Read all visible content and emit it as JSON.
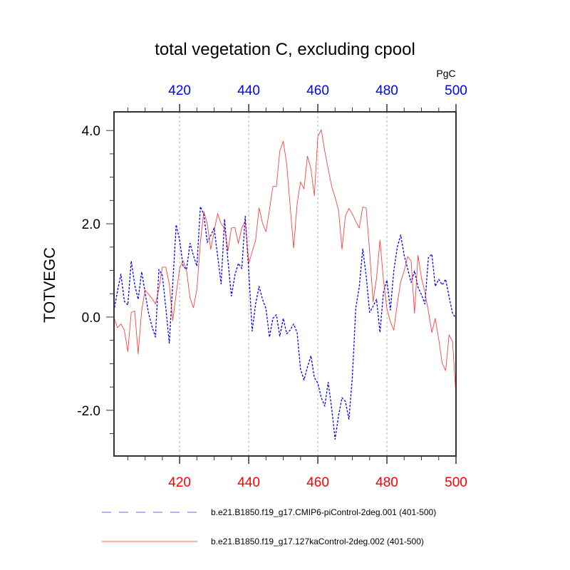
{
  "chart_data": {
    "type": "line",
    "title": "total vegetation C, excluding cpool",
    "units_label": "PgC",
    "xlabel": "",
    "ylabel": "TOTVEGC",
    "xlim": [
      401,
      500
    ],
    "ylim": [
      -2.98,
      4.4
    ],
    "x_ticks": [
      420,
      440,
      460,
      480,
      500
    ],
    "x_tick_labels": [
      "420",
      "440",
      "460",
      "480",
      "500"
    ],
    "x_minor_step": 5,
    "y_ticks": [
      -2.0,
      0.0,
      2.0,
      4.0
    ],
    "y_tick_labels": [
      "-2.0",
      "0.0",
      "2.0",
      "4.0"
    ],
    "y_minor_step": 0.5,
    "grid": "vertical-dotted-at-major-x",
    "legend_position": "bottom",
    "top_axis_color": "#0000ff",
    "bottom_axis_color": "#ff0000",
    "x": [
      401,
      402,
      403,
      404,
      405,
      406,
      407,
      408,
      409,
      410,
      411,
      412,
      413,
      414,
      415,
      416,
      417,
      418,
      419,
      420,
      421,
      422,
      423,
      424,
      425,
      426,
      427,
      428,
      429,
      430,
      431,
      432,
      433,
      434,
      435,
      436,
      437,
      438,
      439,
      440,
      441,
      442,
      443,
      444,
      445,
      446,
      447,
      448,
      449,
      450,
      451,
      452,
      453,
      454,
      455,
      456,
      457,
      458,
      459,
      460,
      461,
      462,
      463,
      464,
      465,
      466,
      467,
      468,
      469,
      470,
      471,
      472,
      473,
      474,
      475,
      476,
      477,
      478,
      479,
      480,
      481,
      482,
      483,
      484,
      485,
      486,
      487,
      488,
      489,
      490,
      491,
      492,
      493,
      494,
      495,
      496,
      497,
      498,
      499,
      500
    ],
    "series": [
      {
        "name": "b.e21.B1850.f19_g17.CMIP6-piControl-2deg.001 (401-500)",
        "color": "#0000ff",
        "style": "dashed",
        "values": [
          0.13,
          0.55,
          0.92,
          0.34,
          0.26,
          1.2,
          0.69,
          0.38,
          0.97,
          0.53,
          0.08,
          -0.2,
          -0.43,
          1.02,
          0.89,
          0.2,
          -0.56,
          0.7,
          1.98,
          1.65,
          1.09,
          1.02,
          1.58,
          1.32,
          1.09,
          2.37,
          2.2,
          1.6,
          1.75,
          1.91,
          1.3,
          0.71,
          2.1,
          1.2,
          0.45,
          0.9,
          1.15,
          1.04,
          2.16,
          0.99,
          -0.3,
          0.28,
          0.66,
          0.38,
          0.18,
          -0.43,
          -0.03,
          0.05,
          -0.41,
          -0.03,
          -0.36,
          -0.28,
          -0.15,
          -0.33,
          -1.12,
          -1.35,
          -1.07,
          -0.83,
          -1.3,
          -1.42,
          -1.73,
          -1.91,
          -1.4,
          -1.96,
          -2.62,
          -2.11,
          -1.73,
          -1.81,
          -2.19,
          -1.3,
          0.2,
          0.64,
          1.46,
          0.89,
          0.1,
          0.23,
          0.38,
          -0.33,
          0.53,
          0.79,
          0.15,
          0.99,
          1.5,
          1.76,
          1.32,
          1.04,
          0.74,
          0.99,
          0.64,
          0.48,
          0.28,
          1.27,
          1.35,
          0.66,
          0.81,
          0.69,
          0.81,
          0.43,
          0.08,
          -0.03
        ]
      },
      {
        "name": "b.e21.B1850.f19_g17.127kaControl-2deg.002 (401-500)",
        "color": "#ff0000",
        "style": "solid",
        "values": [
          0.0,
          -0.23,
          -0.15,
          -0.28,
          -0.74,
          0.1,
          0.13,
          -0.79,
          0.13,
          0.58,
          0.49,
          0.4,
          0.28,
          0.6,
          1.07,
          1.07,
          0.71,
          -0.08,
          0.5,
          1.04,
          1.21,
          1.0,
          0.41,
          0.2,
          0.6,
          1.6,
          2.26,
          2.0,
          1.45,
          1.85,
          2.22,
          2.0,
          1.91,
          1.42,
          1.91,
          1.92,
          1.58,
          1.91,
          2.06,
          1.15,
          1.4,
          1.65,
          2.34,
          2.01,
          1.83,
          2.3,
          2.8,
          2.8,
          3.56,
          3.77,
          3.28,
          2.37,
          1.48,
          2.42,
          2.9,
          2.75,
          3.45,
          3.18,
          2.6,
          3.87,
          4.02,
          3.56,
          3.18,
          2.8,
          2.57,
          2.29,
          1.45,
          2.17,
          2.33,
          2.21,
          2.05,
          1.91,
          2.36,
          2.34,
          1.4,
          0.33,
          0.84,
          1.65,
          0.79,
          0.18,
          -0.1,
          -0.28,
          0.28,
          0.76,
          0.99,
          1.3,
          1.2,
          0.08,
          1.32,
          0.84,
          0.53,
          0.13,
          -0.33,
          -0.03,
          -0.48,
          -0.99,
          -1.15,
          -0.38,
          -0.53,
          -1.7
        ]
      }
    ]
  }
}
